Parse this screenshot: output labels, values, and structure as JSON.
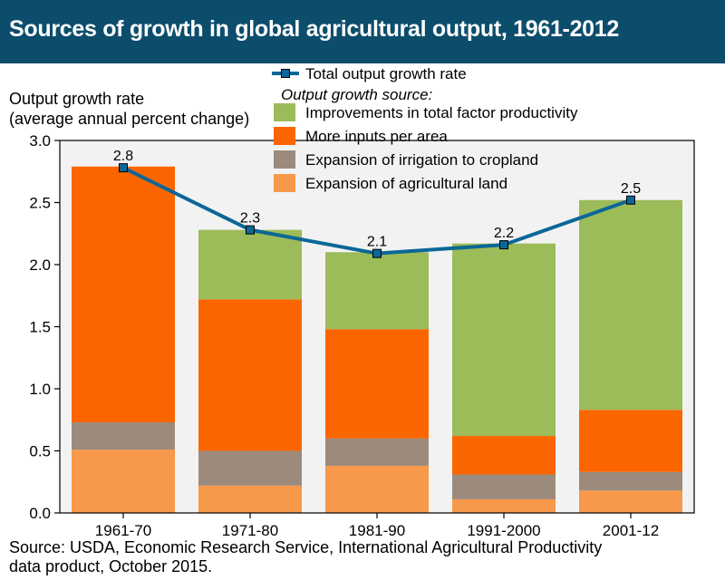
{
  "title": "Sources of growth in global agricultural output, 1961-2012",
  "ylabel_line1": "Output growth rate",
  "ylabel_line2": "(average annual percent change)",
  "source_line1": "Source: USDA, Economic Research Service, International Agricultural Productivity",
  "source_line2": "data product, October 2015.",
  "legend": {
    "line_label": "Total output growth rate",
    "subtitle": "Output growth source:"
  },
  "chart_data": {
    "type": "bar",
    "stacked": true,
    "categories": [
      "1961-70",
      "1971-80",
      "1981-90",
      "1991-2000",
      "2001-12"
    ],
    "ylim": [
      0,
      3.0
    ],
    "yticks": [
      "0.0",
      "0.5",
      "1.0",
      "1.5",
      "2.0",
      "2.5",
      "3.0"
    ],
    "series": [
      {
        "name": "Expansion of agricultural land",
        "color": "#f7984a",
        "values": [
          0.51,
          0.22,
          0.38,
          0.11,
          0.18
        ]
      },
      {
        "name": "Expansion of irrigation to cropland",
        "color": "#9c8b7c",
        "values": [
          0.22,
          0.28,
          0.22,
          0.2,
          0.15
        ]
      },
      {
        "name": "More inputs per area",
        "color": "#fb6500",
        "values": [
          2.06,
          1.22,
          0.88,
          0.31,
          0.5
        ]
      },
      {
        "name": "Improvements in total factor productivity",
        "color": "#9cbb59",
        "values": [
          0.0,
          0.56,
          0.62,
          1.55,
          1.69
        ]
      }
    ],
    "line": {
      "name": "Total output growth rate",
      "color": "#0b6797",
      "values": [
        2.78,
        2.28,
        2.09,
        2.16,
        2.52
      ],
      "labels": [
        "2.8",
        "2.3",
        "2.1",
        "2.2",
        "2.5"
      ]
    }
  }
}
